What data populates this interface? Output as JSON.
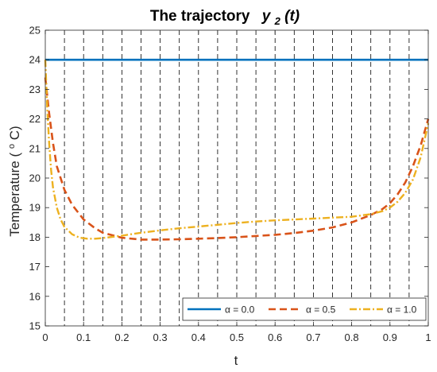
{
  "chart_data": {
    "type": "line",
    "title": "The trajectory",
    "title_var": "y",
    "title_sub": "2",
    "title_arg": "(t)",
    "xlabel": "t",
    "ylabel_prefix": "Temperature (",
    "ylabel_sup": "o",
    "ylabel_suffix": "C)",
    "xlim": [
      0,
      1
    ],
    "ylim": [
      15,
      25
    ],
    "xticks": [
      "0",
      "0.1",
      "0.2",
      "0.3",
      "0.4",
      "0.5",
      "0.6",
      "0.7",
      "0.8",
      "0.9",
      "1"
    ],
    "yticks": [
      "15",
      "16",
      "17",
      "18",
      "19",
      "20",
      "21",
      "22",
      "23",
      "24",
      "25"
    ],
    "vertical_lines_x": [
      0.05,
      0.1,
      0.15,
      0.2,
      0.25,
      0.3,
      0.35,
      0.4,
      0.45,
      0.5,
      0.55,
      0.6,
      0.65,
      0.7,
      0.75,
      0.8,
      0.85,
      0.9,
      0.95
    ],
    "grid": false,
    "legend_position": "bottom-right",
    "series": [
      {
        "name": "α = 0.0",
        "color": "#0072BD",
        "dash": "solid",
        "x": [
          0,
          1
        ],
        "y": [
          24.0,
          24.0
        ]
      },
      {
        "name": "α = 0.5",
        "color": "#D95319",
        "dash": "dashed",
        "x": [
          0,
          0.01,
          0.02,
          0.03,
          0.05,
          0.07,
          0.1,
          0.13,
          0.15,
          0.2,
          0.25,
          0.3,
          0.35,
          0.4,
          0.45,
          0.5,
          0.55,
          0.6,
          0.65,
          0.7,
          0.75,
          0.8,
          0.85,
          0.88,
          0.9,
          0.92,
          0.94,
          0.96,
          0.98,
          1.0
        ],
        "y": [
          23.4,
          22.2,
          21.2,
          20.4,
          19.6,
          19.1,
          18.6,
          18.3,
          18.15,
          17.98,
          17.92,
          17.92,
          17.93,
          17.95,
          17.97,
          18.0,
          18.04,
          18.08,
          18.14,
          18.22,
          18.33,
          18.5,
          18.75,
          18.95,
          19.15,
          19.45,
          19.85,
          20.4,
          21.1,
          22.0
        ]
      },
      {
        "name": "α = 1.0",
        "color": "#EDB120",
        "dash": "dash-dot",
        "x": [
          0,
          0.005,
          0.01,
          0.015,
          0.02,
          0.03,
          0.04,
          0.05,
          0.07,
          0.09,
          0.11,
          0.13,
          0.15,
          0.18,
          0.2,
          0.25,
          0.3,
          0.35,
          0.4,
          0.45,
          0.5,
          0.55,
          0.6,
          0.65,
          0.7,
          0.75,
          0.8,
          0.85,
          0.88,
          0.9,
          0.92,
          0.94,
          0.96,
          0.98,
          1.0
        ],
        "y": [
          24.0,
          22.4,
          21.2,
          20.3,
          19.7,
          19.0,
          18.6,
          18.35,
          18.1,
          17.98,
          17.95,
          17.95,
          17.97,
          18.02,
          18.05,
          18.15,
          18.23,
          18.3,
          18.36,
          18.42,
          18.48,
          18.53,
          18.57,
          18.6,
          18.63,
          18.66,
          18.69,
          18.78,
          18.88,
          19.0,
          19.2,
          19.5,
          19.95,
          20.7,
          21.85
        ]
      }
    ]
  }
}
